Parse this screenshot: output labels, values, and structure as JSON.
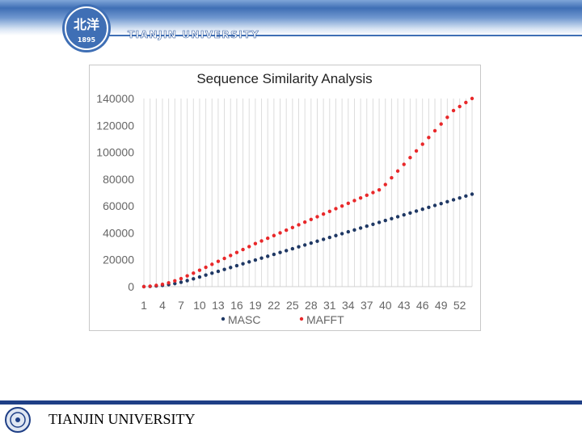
{
  "header": {
    "university": "TIANJIN UNIVERSITY",
    "logo_text": "北洋",
    "logo_year": "1895"
  },
  "footer": {
    "university": "TIANJIN UNIVERSITY"
  },
  "colors": {
    "masc": "#1f3864",
    "mafft": "#e8282a",
    "band": "#3f6fb5"
  },
  "chart_data": {
    "type": "scatter",
    "title": "Sequence Similarity Analysis",
    "xlabel": "",
    "ylabel": "",
    "ylim": [
      0,
      140000
    ],
    "yticks": [
      "140000",
      "120000",
      "100000",
      "80000",
      "60000",
      "40000",
      "20000",
      "0"
    ],
    "xticks": [
      "1",
      "4",
      "7",
      "10",
      "13",
      "16",
      "19",
      "22",
      "25",
      "28",
      "31",
      "34",
      "37",
      "40",
      "43",
      "46",
      "49",
      "52"
    ],
    "x": [
      1,
      2,
      3,
      4,
      5,
      6,
      7,
      8,
      9,
      10,
      11,
      12,
      13,
      14,
      15,
      16,
      17,
      18,
      19,
      20,
      21,
      22,
      23,
      24,
      25,
      26,
      27,
      28,
      29,
      30,
      31,
      32,
      33,
      34,
      35,
      36,
      37,
      38,
      39,
      40,
      41,
      42,
      43,
      44,
      45,
      46,
      47,
      48,
      49,
      50,
      51,
      52,
      53,
      54
    ],
    "grid": true,
    "legend": "bottom",
    "series": [
      {
        "name": "MASC",
        "values": [
          0,
          200,
          500,
          900,
          1500,
          2300,
          3300,
          4500,
          5800,
          7200,
          8600,
          10000,
          11400,
          12800,
          14200,
          15600,
          17000,
          18400,
          19800,
          21200,
          22600,
          24000,
          25400,
          26800,
          28200,
          29600,
          31000,
          32400,
          33800,
          35200,
          36600,
          38000,
          39400,
          40800,
          42200,
          43600,
          45000,
          46400,
          47800,
          49200,
          50600,
          52000,
          53400,
          54800,
          56200,
          57600,
          59000,
          60400,
          61800,
          63200,
          64600,
          66000,
          67400,
          68800
        ]
      },
      {
        "name": "MAFFT",
        "values": [
          0,
          300,
          900,
          1700,
          2800,
          4300,
          6000,
          8000,
          10000,
          12200,
          14400,
          16600,
          18800,
          21000,
          23200,
          25400,
          27600,
          29800,
          32000,
          34000,
          36000,
          38000,
          40000,
          42000,
          44000,
          46000,
          48000,
          50000,
          52000,
          54000,
          56000,
          58000,
          60000,
          62000,
          64000,
          66000,
          68000,
          70000,
          72000,
          76000,
          81000,
          86000,
          91000,
          96000,
          101000,
          106000,
          111000,
          116000,
          121000,
          126000,
          131000,
          134000,
          137000,
          140000
        ]
      }
    ]
  }
}
